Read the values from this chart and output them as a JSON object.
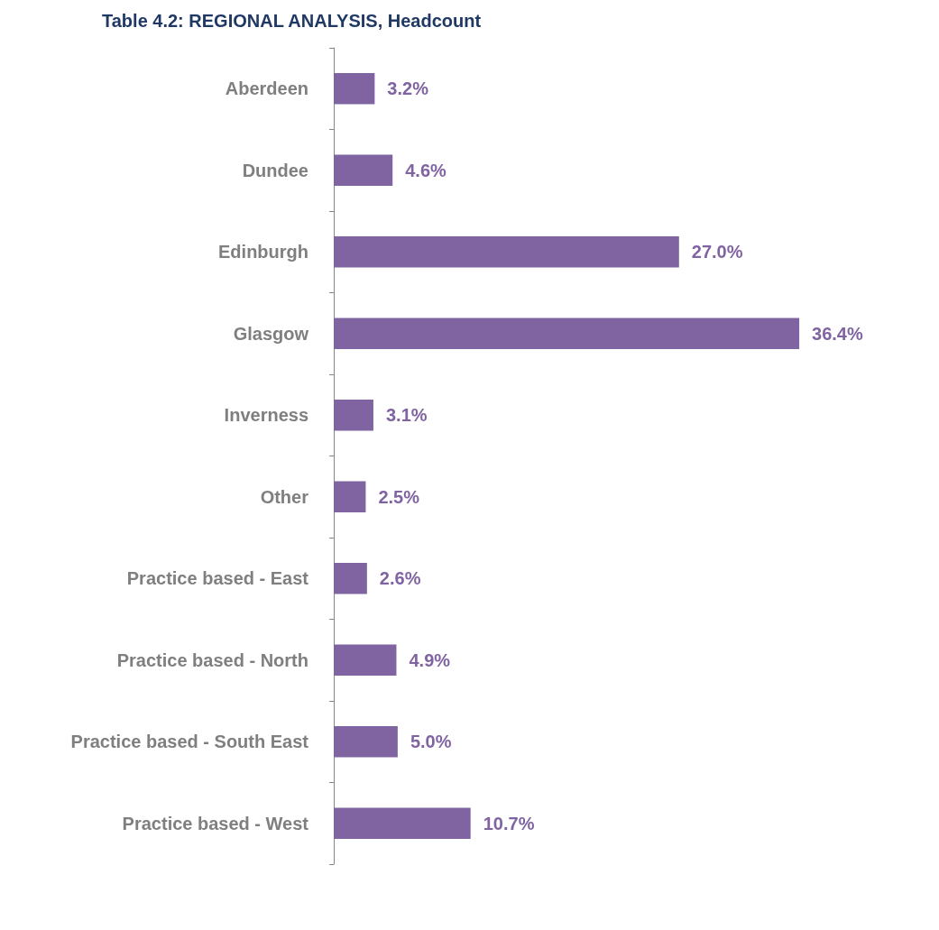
{
  "chart_data": {
    "type": "bar",
    "orientation": "horizontal",
    "title": "Table 4.2: REGIONAL ANALYSIS, Headcount",
    "categories": [
      "Aberdeen",
      "Dundee",
      "Edinburgh",
      "Glasgow",
      "Inverness",
      "Other",
      "Practice based - East",
      "Practice based - North",
      "Practice based - South East",
      "Practice based - West"
    ],
    "values": [
      3.2,
      4.6,
      27.0,
      36.4,
      3.1,
      2.5,
      2.6,
      4.9,
      5.0,
      10.7
    ],
    "value_labels": [
      "3.2%",
      "4.6%",
      "27.0%",
      "36.4%",
      "3.1%",
      "2.5%",
      "2.6%",
      "4.9%",
      "5.0%",
      "10.7%"
    ],
    "color": "#8064a2"
  }
}
